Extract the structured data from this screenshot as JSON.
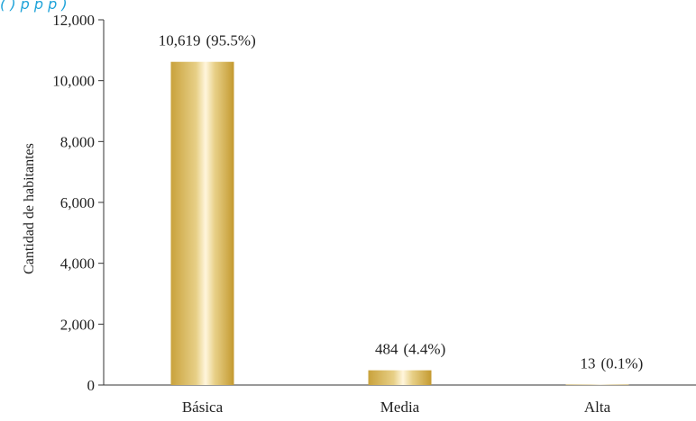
{
  "header": {
    "title_fragment": "(  ) p   p  p   )"
  },
  "colors": {
    "bar_dark": "#c9a23c",
    "bar_light": "#fff6dc",
    "axis": "#333333",
    "title": "#1fa3d9"
  },
  "chart_data": {
    "type": "bar",
    "categories": [
      "Básica",
      "Media",
      "Alta"
    ],
    "values": [
      10619,
      484,
      13
    ],
    "value_labels": [
      "10,619",
      "484",
      "13"
    ],
    "percent_labels": [
      "(95.5%)",
      "(4.4%)",
      "(0.1%)"
    ],
    "ylabel": "Cantidad de habitantes",
    "xlabel": "",
    "ylim": [
      0,
      12000
    ],
    "yticks": [
      0,
      2000,
      4000,
      6000,
      8000,
      10000,
      12000
    ],
    "ytick_labels": [
      "0",
      "2,000",
      "4,000",
      "6,000",
      "8,000",
      "10,000",
      "12,000"
    ],
    "grid": false,
    "legend": "none"
  }
}
